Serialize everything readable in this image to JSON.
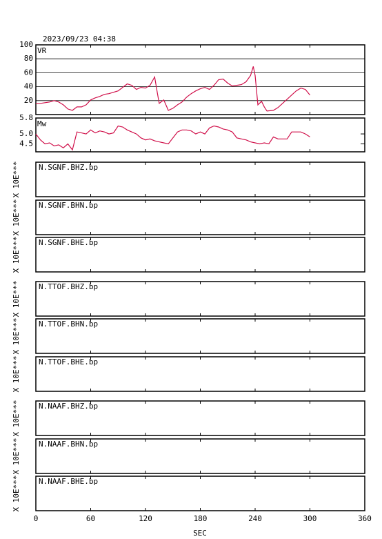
{
  "chart_data": [
    {
      "type": "line",
      "title": "2023/09/23 04:38",
      "label": "VR",
      "x": [
        0,
        5,
        10,
        15,
        20,
        25,
        30,
        35,
        40,
        45,
        50,
        55,
        60,
        65,
        70,
        75,
        80,
        85,
        90,
        95,
        100,
        105,
        110,
        115,
        120,
        125,
        130,
        133,
        135,
        140,
        145,
        150,
        155,
        160,
        165,
        170,
        175,
        180,
        185,
        190,
        195,
        200,
        205,
        210,
        215,
        220,
        225,
        230,
        235,
        238,
        240,
        243,
        247,
        250,
        253,
        260,
        265,
        270,
        275,
        280,
        285,
        290,
        295,
        300
      ],
      "series": [
        {
          "color": "#d0104a",
          "values": [
            16,
            16,
            17,
            18,
            20,
            18,
            14,
            8,
            6,
            11,
            11,
            14,
            21,
            24,
            26,
            29,
            30,
            32,
            34,
            39,
            44,
            42,
            36,
            39,
            38,
            42,
            54,
            31,
            16,
            21,
            6,
            9,
            14,
            18,
            25,
            30,
            34,
            37,
            39,
            36,
            42,
            50,
            51,
            45,
            41,
            42,
            43,
            47,
            56,
            69,
            56,
            14,
            19,
            11,
            5,
            6,
            10,
            16,
            22,
            28,
            34,
            38,
            36,
            28
          ]
        }
      ],
      "ylim": [
        0,
        100
      ],
      "yticks": [
        20,
        40,
        60,
        80,
        100
      ],
      "grid": true
    },
    {
      "type": "line",
      "label": "Mw",
      "x": [
        0,
        5,
        10,
        15,
        20,
        25,
        30,
        35,
        40,
        45,
        50,
        55,
        60,
        65,
        70,
        75,
        80,
        85,
        90,
        95,
        100,
        105,
        110,
        115,
        120,
        125,
        130,
        135,
        140,
        145,
        150,
        155,
        160,
        165,
        170,
        175,
        180,
        185,
        190,
        195,
        200,
        205,
        210,
        215,
        220,
        225,
        230,
        235,
        240,
        245,
        250,
        255,
        260,
        265,
        270,
        275,
        280,
        285,
        290,
        295,
        300
      ],
      "series": [
        {
          "color": "#d0104a",
          "values": [
            5.0,
            4.7,
            4.5,
            4.55,
            4.4,
            4.45,
            4.3,
            4.5,
            4.2,
            5.1,
            5.05,
            5.0,
            5.2,
            5.05,
            5.15,
            5.1,
            5.0,
            5.05,
            5.4,
            5.35,
            5.2,
            5.1,
            5.0,
            4.8,
            4.7,
            4.75,
            4.65,
            4.6,
            4.55,
            4.5,
            4.8,
            5.1,
            5.2,
            5.2,
            5.15,
            5.0,
            5.1,
            5.0,
            5.3,
            5.4,
            5.35,
            5.25,
            5.2,
            5.1,
            4.8,
            4.75,
            4.7,
            4.6,
            4.55,
            4.5,
            4.55,
            4.5,
            4.85,
            4.75,
            4.75,
            4.75,
            5.1,
            5.1,
            5.1,
            5.0,
            4.85
          ]
        }
      ],
      "ylim": [
        4.1,
        5.8
      ],
      "yticks": [
        4.5,
        {
          "value": 5,
          "label": "5.0"
        },
        5.8
      ]
    },
    {
      "type": "trace",
      "title": "N.SGNF.BHZ.bp",
      "ylabel": "X 10E***"
    },
    {
      "type": "trace",
      "title": "N.SGNF.BHN.bp",
      "ylabel": "X 10E***"
    },
    {
      "type": "trace",
      "title": "N.SGNF.BHE.bp",
      "ylabel": "X 10E***"
    },
    {
      "type": "trace",
      "title": "N.TTOF.BHZ.bp",
      "ylabel": "X 10E***"
    },
    {
      "type": "trace",
      "title": "N.TTOF.BHN.bp",
      "ylabel": "X 10E***"
    },
    {
      "type": "trace",
      "title": "N.TTOF.BHE.bp",
      "ylabel": "X 10E***"
    },
    {
      "type": "trace",
      "title": "N.NAAF.BHZ.bp",
      "ylabel": "X 10E***"
    },
    {
      "type": "trace",
      "title": "N.NAAF.BHN.bp",
      "ylabel": "X 10E***"
    },
    {
      "type": "trace",
      "title": "N.NAAF.BHE.bp",
      "ylabel": "X 10E***",
      "xlim": [
        0,
        360
      ],
      "xticks": [
        0,
        60,
        120,
        180,
        240,
        300,
        360
      ],
      "xlabel": "SEC"
    }
  ]
}
